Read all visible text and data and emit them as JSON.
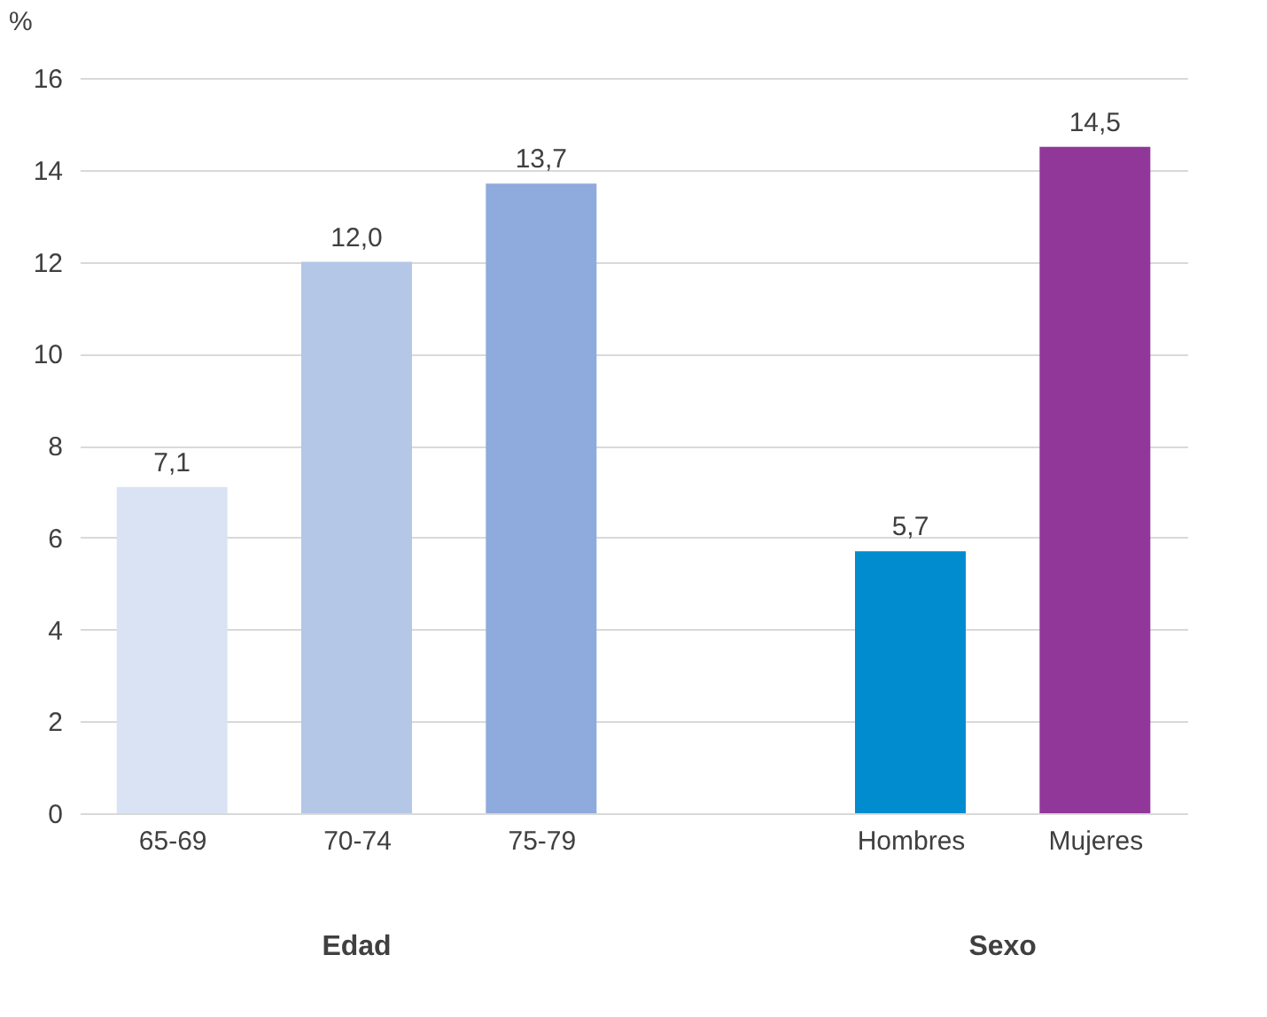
{
  "chart_data": {
    "type": "bar",
    "ylabel": "%",
    "categories": [
      "65-69",
      "70-74",
      "75-79",
      null,
      "Hombres",
      "Mujeres"
    ],
    "values": [
      7.1,
      12.0,
      13.7,
      null,
      5.7,
      14.5
    ],
    "colors": [
      "#dae3f3",
      "#b4c7e7",
      "#8faadc",
      null,
      "#008ccf",
      "#92379a"
    ],
    "value_labels": [
      "7,1",
      "12,0",
      "13,7",
      null,
      "5,7",
      "14,5"
    ],
    "ylim": [
      0,
      16
    ],
    "yticks": [
      0,
      2,
      4,
      6,
      8,
      10,
      12,
      14,
      16
    ],
    "grid": "y",
    "legend": false,
    "annotations": [
      "Edad",
      "Sexo"
    ]
  }
}
